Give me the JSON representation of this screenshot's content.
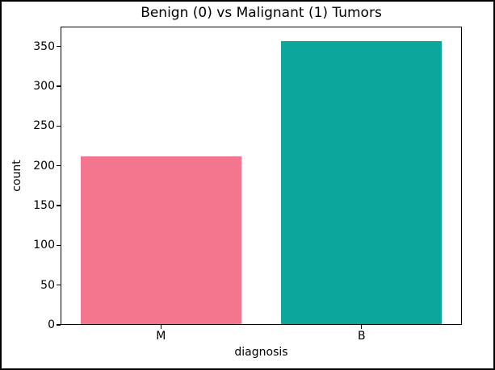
{
  "chart_data": {
    "type": "bar",
    "title": "Benign (0) vs Malignant (1) Tumors",
    "xlabel": "diagnosis",
    "ylabel": "count",
    "categories": [
      "M",
      "B"
    ],
    "values": [
      212,
      357
    ],
    "colors": [
      "#f4768e",
      "#0da69c"
    ],
    "ylim": [
      0,
      375
    ],
    "yticks": [
      0,
      50,
      100,
      150,
      200,
      250,
      300,
      350
    ],
    "bar_width_fraction": 0.8,
    "grid": false,
    "legend_position": "none",
    "spine_color": "#000000",
    "background_color": "#ffffff"
  }
}
